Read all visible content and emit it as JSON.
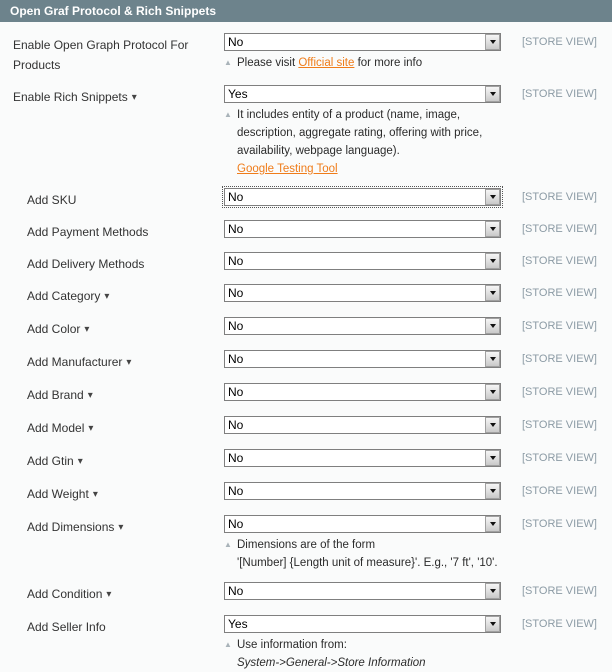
{
  "header": {
    "title": "Open Graf Protocol & Rich Snippets"
  },
  "scope_label_text": "[STORE VIEW]",
  "colors": {
    "header_bg": "#6d838c",
    "page_bg": "#fafbfb",
    "link_orange": "#ef7c1a",
    "scope_text": "#8c9ba5",
    "label_text": "#333333"
  },
  "icons": {
    "note_marker": "triangle-up",
    "select_arrow": "triangle-down",
    "expander": "triangle-down-small"
  },
  "rows": [
    {
      "label": "Enable Open Graph Protocol For Products",
      "value": "No",
      "child": false,
      "expander": false,
      "focused": false,
      "note_lines": [
        {
          "parts": [
            {
              "t": "Please visit "
            },
            {
              "t": "Official site",
              "kind": "link"
            },
            {
              "t": " for more info"
            }
          ]
        }
      ]
    },
    {
      "label": "Enable Rich Snippets",
      "value": "Yes",
      "child": false,
      "expander": true,
      "focused": false,
      "note_lines": [
        {
          "parts": [
            {
              "t": "It includes entity of a product (name, image,"
            }
          ]
        },
        {
          "parts": [
            {
              "t": "description, aggregate rating, offering with price,"
            }
          ]
        },
        {
          "parts": [
            {
              "t": "availability, webpage language)."
            }
          ]
        },
        {
          "parts": [
            {
              "t": "Google Testing Tool",
              "kind": "link"
            }
          ]
        }
      ]
    },
    {
      "label": "Add SKU",
      "value": "No",
      "child": true,
      "expander": false,
      "focused": true
    },
    {
      "label": "Add Payment Methods",
      "value": "No",
      "child": true,
      "expander": false,
      "focused": false
    },
    {
      "label": "Add Delivery Methods",
      "value": "No",
      "child": true,
      "expander": false,
      "focused": false
    },
    {
      "label": "Add Category",
      "value": "No",
      "child": true,
      "expander": true,
      "focused": false
    },
    {
      "label": "Add Color",
      "value": "No",
      "child": true,
      "expander": true,
      "focused": false
    },
    {
      "label": "Add Manufacturer",
      "value": "No",
      "child": true,
      "expander": true,
      "focused": false
    },
    {
      "label": "Add Brand",
      "value": "No",
      "child": true,
      "expander": true,
      "focused": false
    },
    {
      "label": "Add Model",
      "value": "No",
      "child": true,
      "expander": true,
      "focused": false
    },
    {
      "label": "Add Gtin",
      "value": "No",
      "child": true,
      "expander": true,
      "focused": false
    },
    {
      "label": "Add Weight",
      "value": "No",
      "child": true,
      "expander": true,
      "focused": false
    },
    {
      "label": "Add Dimensions",
      "value": "No",
      "child": true,
      "expander": true,
      "focused": false,
      "note_lines": [
        {
          "parts": [
            {
              "t": "Dimensions are of the form"
            }
          ]
        },
        {
          "parts": [
            {
              "t": "'[Number] {Length unit of measure}'. E.g., '7 ft', '10'."
            }
          ]
        }
      ]
    },
    {
      "label": "Add Condition",
      "value": "No",
      "child": true,
      "expander": true,
      "focused": false
    },
    {
      "label": "Add Seller Info",
      "value": "Yes",
      "child": true,
      "expander": false,
      "focused": false,
      "note_lines": [
        {
          "parts": [
            {
              "t": "Use information from:"
            }
          ]
        },
        {
          "parts": [
            {
              "t": "System->General->Store Information",
              "kind": "em"
            }
          ]
        }
      ]
    }
  ]
}
